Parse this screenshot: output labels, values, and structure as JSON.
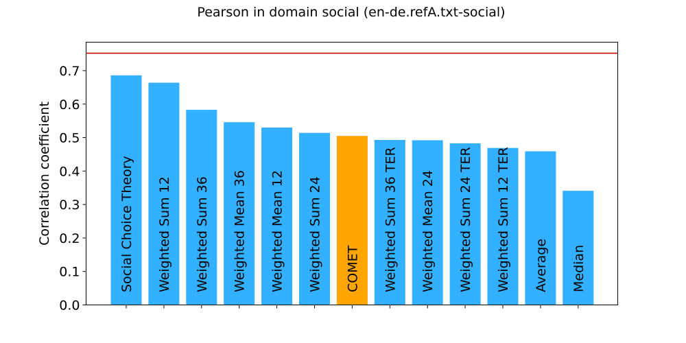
{
  "chart_data": {
    "type": "bar",
    "title": "Pearson in domain social (en-de.refA.txt-social)",
    "xlabel": "",
    "ylabel": "Correlation coefficient",
    "ylim": [
      0,
      0.785
    ],
    "yticks": [
      0.0,
      0.1,
      0.2,
      0.3,
      0.4,
      0.5,
      0.6,
      0.7
    ],
    "ytick_labels": [
      "0.0",
      "0.1",
      "0.2",
      "0.3",
      "0.4",
      "0.5",
      "0.6",
      "0.7"
    ],
    "categories": [
      "Social Choice Theory",
      "Weighted Sum 12",
      "Weighted Sum 36",
      "Weighted Mean 36",
      "Weighted Mean 12",
      "Weighted Sum 24",
      "COMET",
      "Weighted Sum 36 TER",
      "Weighted Mean 24",
      "Weighted Sum 24 TER",
      "Weighted Sum 12 TER",
      "Average",
      "Median"
    ],
    "values": [
      0.686,
      0.664,
      0.583,
      0.546,
      0.53,
      0.514,
      0.505,
      0.493,
      0.492,
      0.483,
      0.469,
      0.459,
      0.341
    ],
    "highlight_category": "COMET",
    "reference_line": 0.752,
    "colors": {
      "bar": "#33b0ff",
      "highlight": "#ffa500",
      "reference_line": "#cc0000",
      "axis": "#000000"
    },
    "grid": false
  }
}
